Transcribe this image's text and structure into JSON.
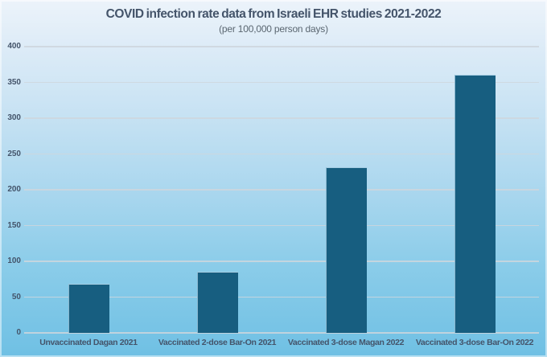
{
  "chart_data": {
    "type": "bar",
    "title": "COVID infection rate data from Israeli EHR studies 2021-2022",
    "subtitle": "(per 100,000 person days)",
    "categories": [
      "Unvaccinated Dagan 2021",
      "Vaccinated 2-dose Bar-On 2021",
      "Vaccinated 3-dose Magan 2022",
      "Vaccinated 3-dose Bar-On 2022"
    ],
    "values": [
      68,
      85,
      232,
      361
    ],
    "xlabel": "",
    "ylabel": "",
    "ylim": [
      0,
      400
    ],
    "yticks": [
      0,
      50,
      100,
      150,
      200,
      250,
      300,
      350,
      400
    ],
    "grid": true,
    "legend_position": "none",
    "colors": {
      "bar_fill": "#175e80",
      "bar_highlight": "#a8d5ec",
      "background_top": "#ecf3fa",
      "background_bottom": "#6fc0e4",
      "gridline": "#ced6dd",
      "text": "#44546a"
    }
  }
}
